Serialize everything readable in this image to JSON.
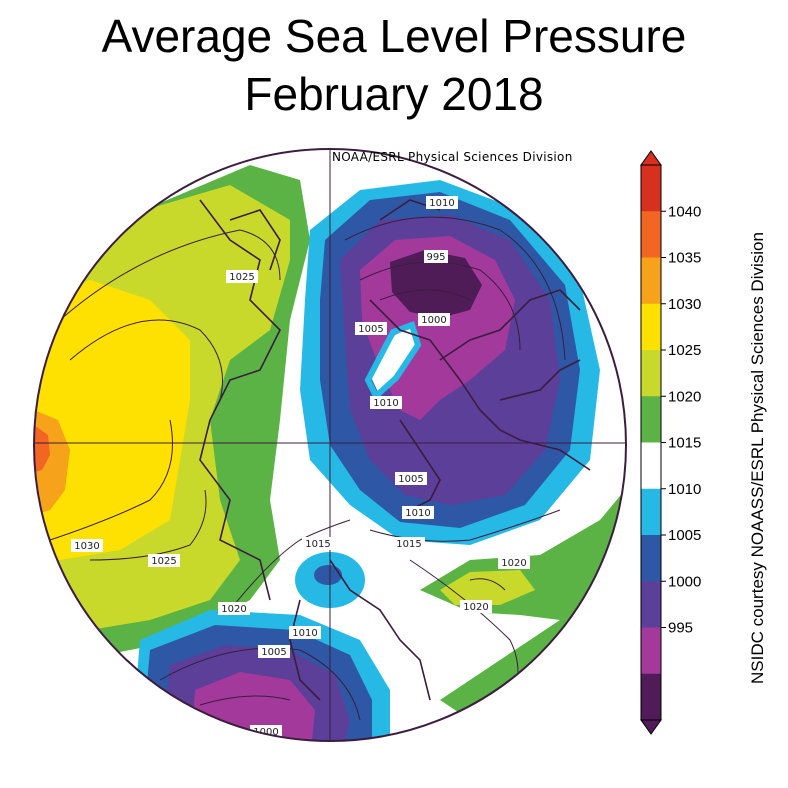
{
  "title": {
    "line1": "Average Sea Level Pressure",
    "line2": "February 2018"
  },
  "credits": {
    "map_top": "NOAA/ESRL Physical Sciences Division",
    "side": "NSIDC courtesy NOAASS/ESRL Physical Sciences Division"
  },
  "colorbar": {
    "ticks": [
      "1040",
      "1035",
      "1030",
      "1025",
      "1020",
      "1015",
      "1010",
      "1005",
      "1000",
      "995"
    ],
    "bands": [
      {
        "from": 1040,
        "to": 1045,
        "color": "#d7301f"
      },
      {
        "from": 1035,
        "to": 1040,
        "color": "#f26522"
      },
      {
        "from": 1030,
        "to": 1035,
        "color": "#f7a21b"
      },
      {
        "from": 1025,
        "to": 1030,
        "color": "#ffe100"
      },
      {
        "from": 1020,
        "to": 1025,
        "color": "#c9d92c"
      },
      {
        "from": 1015,
        "to": 1020,
        "color": "#5bb346"
      },
      {
        "from": 1010,
        "to": 1015,
        "color": "#ffffff"
      },
      {
        "from": 1005,
        "to": 1010,
        "color": "#27b9e6"
      },
      {
        "from": 1000,
        "to": 1005,
        "color": "#2e58a6"
      },
      {
        "from": 995,
        "to": 1000,
        "color": "#5b3f98"
      },
      {
        "from": 990,
        "to": 995,
        "color": "#a33a9b"
      },
      {
        "from": 985,
        "to": 990,
        "color": "#4f1c57"
      }
    ]
  },
  "map_labels": [
    "1010",
    "995",
    "1000",
    "1005",
    "1010",
    "1025",
    "1005",
    "1010",
    "1030",
    "1025",
    "1015",
    "1015",
    "1020",
    "1020",
    "1020",
    "1010",
    "1005",
    "1000"
  ],
  "colors": {
    "frame": "#3b1d3f",
    "land_outline": "#3b1d3f"
  }
}
